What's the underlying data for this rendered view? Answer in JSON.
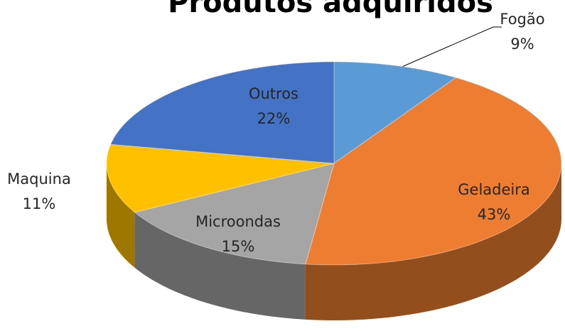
{
  "chart_data": {
    "type": "pie",
    "title": "Produtos adquiridos",
    "categories": [
      "Fogão",
      "Geladeira",
      "Microondas",
      "Maquina",
      "Outros"
    ],
    "values": [
      9,
      43,
      15,
      11,
      22
    ],
    "value_labels": [
      "9%",
      "43%",
      "15%",
      "11%",
      "22%"
    ],
    "colors": [
      "#5b9bd5",
      "#ed7d31",
      "#a5a5a5",
      "#ffc000",
      "#4472c4"
    ]
  }
}
